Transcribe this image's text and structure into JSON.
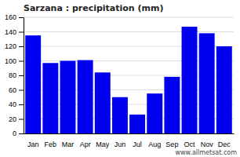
{
  "chart_data": {
    "type": "bar",
    "title": "Sarzana : precipitation (mm)",
    "categories": [
      "Jan",
      "Feb",
      "Mar",
      "Apr",
      "May",
      "Jun",
      "Jul",
      "Aug",
      "Sep",
      "Oct",
      "Nov",
      "Dec"
    ],
    "values": [
      135,
      97,
      100,
      101,
      84,
      50,
      26,
      55,
      78,
      147,
      138,
      120
    ],
    "color": "#0000ee",
    "ylim": [
      0,
      160
    ],
    "yticks": [
      0,
      20,
      40,
      60,
      80,
      100,
      120,
      140,
      160
    ],
    "grid": true,
    "annotations": [
      "www.allmetsat.com"
    ]
  }
}
